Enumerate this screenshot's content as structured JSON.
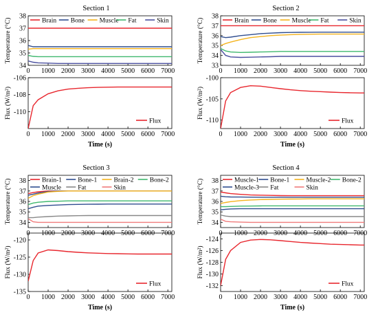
{
  "chart_data": [
    {
      "type": "line",
      "section_title": "Section 1",
      "x": [
        0,
        250,
        500,
        1000,
        1500,
        2000,
        2500,
        3000,
        3500,
        4000,
        4500,
        5000,
        5500,
        6000,
        6500,
        7000,
        7200
      ],
      "xticks": [
        0,
        1000,
        2000,
        3000,
        4000,
        5000,
        6000,
        7000
      ],
      "xlabel": "Time (s)",
      "temperature": {
        "ylabel": "Temperature (°C)",
        "ylim": [
          34,
          38
        ],
        "yticks": [
          34,
          35,
          36,
          37,
          38
        ],
        "legend_columns": 5,
        "series": [
          {
            "name": "Brain",
            "color": "#e8262d",
            "values": [
              37.0,
              37.0,
              37.0,
              37.0,
              37.0,
              37.0,
              37.0,
              37.0,
              37.0,
              37.0,
              37.0,
              37.0,
              37.0,
              37.0,
              37.0,
              37.0,
              37.0
            ]
          },
          {
            "name": "Bone",
            "color": "#2f4d8f",
            "values": [
              35.6,
              35.5,
              35.5,
              35.5,
              35.5,
              35.5,
              35.5,
              35.5,
              35.5,
              35.5,
              35.5,
              35.5,
              35.5,
              35.5,
              35.5,
              35.5,
              35.5
            ]
          },
          {
            "name": "Muscle",
            "color": "#f4b31c",
            "values": [
              35.3,
              35.35,
              35.35,
              35.35,
              35.35,
              35.35,
              35.35,
              35.35,
              35.35,
              35.35,
              35.35,
              35.35,
              35.35,
              35.35,
              35.35,
              35.35,
              35.35
            ]
          },
          {
            "name": "Fat",
            "color": "#3fb86e",
            "values": [
              34.8,
              34.72,
              34.7,
              34.7,
              34.7,
              34.7,
              34.7,
              34.7,
              34.7,
              34.7,
              34.7,
              34.7,
              34.7,
              34.7,
              34.7,
              34.7,
              34.7
            ]
          },
          {
            "name": "Skin",
            "color": "#4a4f9f",
            "values": [
              34.35,
              34.25,
              34.2,
              34.18,
              34.15,
              34.15,
              34.15,
              34.15,
              34.15,
              34.15,
              34.15,
              34.15,
              34.15,
              34.15,
              34.15,
              34.15,
              34.15
            ]
          }
        ]
      },
      "flux": {
        "ylabel": "Flux (W/m²)",
        "ylim": [
          -112,
          -106
        ],
        "yticks": [
          -110,
          -108,
          -106
        ],
        "series": [
          {
            "name": "Flux",
            "color": "#e8262d",
            "values": [
              -112.0,
              -109.3,
              -108.6,
              -107.9,
              -107.55,
              -107.35,
              -107.25,
              -107.18,
              -107.14,
              -107.12,
              -107.1,
              -107.1,
              -107.1,
              -107.1,
              -107.1,
              -107.1,
              -107.1
            ]
          }
        ]
      }
    },
    {
      "type": "line",
      "section_title": "Section 2",
      "x": [
        0,
        250,
        500,
        1000,
        1500,
        2000,
        2500,
        3000,
        3500,
        4000,
        4500,
        5000,
        5500,
        6000,
        6500,
        7000,
        7200
      ],
      "xticks": [
        0,
        1000,
        2000,
        3000,
        4000,
        5000,
        6000,
        7000
      ],
      "xlabel": "Time (s)",
      "temperature": {
        "ylabel": "Temperature (°C)",
        "ylim": [
          33,
          38
        ],
        "yticks": [
          33,
          34,
          35,
          36,
          37,
          38
        ],
        "legend_columns": 5,
        "series": [
          {
            "name": "Brain",
            "color": "#e8262d",
            "values": [
              37.0,
              37.0,
              37.0,
              37.0,
              37.0,
              37.0,
              37.0,
              37.0,
              37.0,
              37.0,
              37.0,
              37.0,
              37.0,
              37.0,
              37.0,
              37.0,
              37.0
            ]
          },
          {
            "name": "Bone",
            "color": "#2f4d8f",
            "values": [
              35.9,
              35.8,
              35.85,
              36.0,
              36.1,
              36.2,
              36.25,
              36.3,
              36.32,
              36.33,
              36.34,
              36.35,
              36.35,
              36.35,
              36.35,
              36.35,
              36.35
            ]
          },
          {
            "name": "Muscle",
            "color": "#f4b31c",
            "values": [
              35.0,
              35.2,
              35.35,
              35.6,
              35.8,
              35.9,
              36.0,
              36.05,
              36.1,
              36.12,
              36.14,
              36.15,
              36.15,
              36.15,
              36.15,
              36.15,
              36.15
            ]
          },
          {
            "name": "Fat",
            "color": "#3fb86e",
            "values": [
              34.7,
              34.45,
              34.35,
              34.3,
              34.32,
              34.35,
              34.37,
              34.4,
              34.4,
              34.4,
              34.4,
              34.4,
              34.4,
              34.4,
              34.4,
              34.4,
              34.4
            ]
          },
          {
            "name": "Skin",
            "color": "#4a4f9f",
            "values": [
              34.6,
              34.0,
              33.85,
              33.8,
              33.82,
              33.85,
              33.87,
              33.9,
              33.9,
              33.9,
              33.9,
              33.9,
              33.9,
              33.9,
              33.9,
              33.9,
              33.9
            ]
          }
        ]
      },
      "flux": {
        "ylabel": "Flux (W/m²)",
        "ylim": [
          -112,
          -100
        ],
        "yticks": [
          -110,
          -105,
          -100
        ],
        "series": [
          {
            "name": "Flux",
            "color": "#e8262d",
            "values": [
              -112.0,
              -105.5,
              -103.5,
              -102.3,
              -101.9,
              -102.0,
              -102.3,
              -102.6,
              -102.85,
              -103.05,
              -103.2,
              -103.3,
              -103.4,
              -103.5,
              -103.55,
              -103.6,
              -103.6
            ]
          }
        ]
      }
    },
    {
      "type": "line",
      "section_title": "Section 3",
      "x": [
        0,
        250,
        500,
        1000,
        1500,
        2000,
        2500,
        3000,
        3500,
        4000,
        4500,
        5000,
        5500,
        6000,
        6500,
        7000,
        7200
      ],
      "xticks": [
        0,
        1000,
        2000,
        3000,
        4000,
        5000,
        6000,
        7000
      ],
      "xlabel": "Time (s)",
      "temperature": {
        "ylabel": "Temperature (°C)",
        "ylim": [
          33.5,
          38.5
        ],
        "yticks": [
          34,
          35,
          36,
          37,
          38
        ],
        "legend_columns": 4,
        "series": [
          {
            "name": "Brain-1",
            "color": "#e8262d",
            "values": [
              36.75,
              36.85,
              36.92,
              37.0,
              37.0,
              37.0,
              37.0,
              37.0,
              37.0,
              37.0,
              37.0,
              37.0,
              37.0,
              37.0,
              37.0,
              37.0,
              37.0
            ]
          },
          {
            "name": "Bone-1",
            "color": "#2f4d8f",
            "values": [
              36.6,
              36.7,
              36.8,
              36.95,
              37.0,
              37.0,
              37.0,
              37.0,
              37.0,
              37.0,
              37.0,
              37.0,
              37.0,
              37.0,
              37.0,
              37.0,
              37.0
            ]
          },
          {
            "name": "Brain-2",
            "color": "#f4b31c",
            "values": [
              36.3,
              36.55,
              36.7,
              36.9,
              36.97,
              37.0,
              37.0,
              37.0,
              37.0,
              37.0,
              37.0,
              37.0,
              37.0,
              37.0,
              37.0,
              37.0,
              37.0
            ]
          },
          {
            "name": "Bone-2",
            "color": "#3fb86e",
            "values": [
              35.7,
              35.85,
              35.92,
              36.0,
              36.02,
              36.05,
              36.05,
              36.05,
              36.05,
              36.05,
              36.05,
              36.05,
              36.05,
              36.05,
              36.05,
              36.05,
              36.05
            ]
          },
          {
            "name": "Muscle",
            "color": "#2f4d8f",
            "values": [
              35.3,
              35.45,
              35.55,
              35.62,
              35.66,
              35.7,
              35.72,
              35.73,
              35.74,
              35.75,
              35.75,
              35.75,
              35.75,
              35.75,
              35.75,
              35.75,
              35.75
            ]
          },
          {
            "name": "Fat",
            "color": "#888888",
            "values": [
              34.45,
              34.45,
              34.5,
              34.55,
              34.6,
              34.62,
              34.64,
              34.65,
              34.65,
              34.65,
              34.65,
              34.65,
              34.65,
              34.65,
              34.65,
              34.65,
              34.65
            ]
          },
          {
            "name": "Skin",
            "color": "#f07a7a",
            "values": [
              34.35,
              34.05,
              34.0,
              34.0,
              34.0,
              34.0,
              34.0,
              34.0,
              34.0,
              34.0,
              34.0,
              34.0,
              34.0,
              34.0,
              34.0,
              34.0,
              34.0
            ]
          }
        ]
      },
      "flux": {
        "ylabel": "Flux (W/m²)",
        "ylim": [
          -135,
          -118
        ],
        "yticks": [
          -135,
          -130,
          -125,
          -120
        ],
        "series": [
          {
            "name": "Flux",
            "color": "#e8262d",
            "values": [
              -132.0,
              -126.0,
              -123.8,
              -122.9,
              -123.1,
              -123.4,
              -123.6,
              -123.75,
              -123.85,
              -123.95,
              -124.0,
              -124.05,
              -124.1,
              -124.1,
              -124.1,
              -124.1,
              -124.1
            ]
          }
        ]
      }
    },
    {
      "type": "line",
      "section_title": "Section 4",
      "x": [
        0,
        250,
        500,
        1000,
        1500,
        2000,
        2500,
        3000,
        3500,
        4000,
        4500,
        5000,
        5500,
        6000,
        6500,
        7000,
        7200
      ],
      "xticks": [
        0,
        1000,
        2000,
        3000,
        4000,
        5000,
        6000,
        7000
      ],
      "xlabel": "Time (s)",
      "temperature": {
        "ylabel": "Temperature (°C)",
        "ylim": [
          33.5,
          38.5
        ],
        "yticks": [
          34,
          35,
          36,
          37,
          38
        ],
        "legend_columns": 4,
        "series": [
          {
            "name": "Muscle-1",
            "color": "#e8262d",
            "values": [
              36.9,
              36.82,
              36.75,
              36.68,
              36.62,
              36.6,
              36.58,
              36.56,
              36.55,
              36.55,
              36.55,
              36.55,
              36.55,
              36.55,
              36.55,
              36.55,
              36.55
            ]
          },
          {
            "name": "Bone-1",
            "color": "#2f4d8f",
            "values": [
              36.5,
              36.45,
              36.43,
              36.42,
              36.41,
              36.4,
              36.4,
              36.4,
              36.4,
              36.4,
              36.4,
              36.4,
              36.4,
              36.4,
              36.4,
              36.4,
              36.4
            ]
          },
          {
            "name": "Muscle-2",
            "color": "#f4b31c",
            "values": [
              35.8,
              35.9,
              35.98,
              36.08,
              36.14,
              36.18,
              36.2,
              36.22,
              36.23,
              36.24,
              36.25,
              36.25,
              36.25,
              36.25,
              36.25,
              36.25,
              36.25
            ]
          },
          {
            "name": "Bone-2",
            "color": "#3fb86e",
            "values": [
              35.5,
              35.5,
              35.52,
              35.55,
              35.56,
              35.57,
              35.58,
              35.58,
              35.58,
              35.58,
              35.58,
              35.58,
              35.58,
              35.58,
              35.58,
              35.58,
              35.58
            ]
          },
          {
            "name": "Muscle-3",
            "color": "#2f4d8f",
            "values": [
              35.2,
              35.25,
              35.28,
              35.3,
              35.3,
              35.3,
              35.3,
              35.3,
              35.3,
              35.3,
              35.3,
              35.3,
              35.3,
              35.3,
              35.3,
              35.3,
              35.3
            ]
          },
          {
            "name": "Fat",
            "color": "#888888",
            "values": [
              34.7,
              34.6,
              34.55,
              34.55,
              34.55,
              34.55,
              34.55,
              34.55,
              34.55,
              34.55,
              34.55,
              34.55,
              34.55,
              34.55,
              34.55,
              34.55,
              34.55
            ]
          },
          {
            "name": "Skin",
            "color": "#f07a7a",
            "values": [
              34.3,
              34.1,
              34.05,
              34.02,
              34.0,
              34.0,
              34.0,
              34.0,
              34.0,
              34.0,
              34.0,
              34.0,
              34.0,
              34.0,
              34.0,
              34.0,
              34.0
            ]
          }
        ]
      },
      "flux": {
        "ylabel": "Flux (W/m²)",
        "ylim": [
          -133,
          -123
        ],
        "yticks": [
          -132,
          -130,
          -128,
          -126,
          -124
        ],
        "series": [
          {
            "name": "Flux",
            "color": "#e8262d",
            "values": [
              -132.0,
              -127.5,
              -126.0,
              -124.6,
              -124.2,
              -124.1,
              -124.15,
              -124.3,
              -124.45,
              -124.6,
              -124.7,
              -124.8,
              -124.9,
              -124.95,
              -125.0,
              -125.05,
              -125.05
            ]
          }
        ]
      }
    }
  ]
}
